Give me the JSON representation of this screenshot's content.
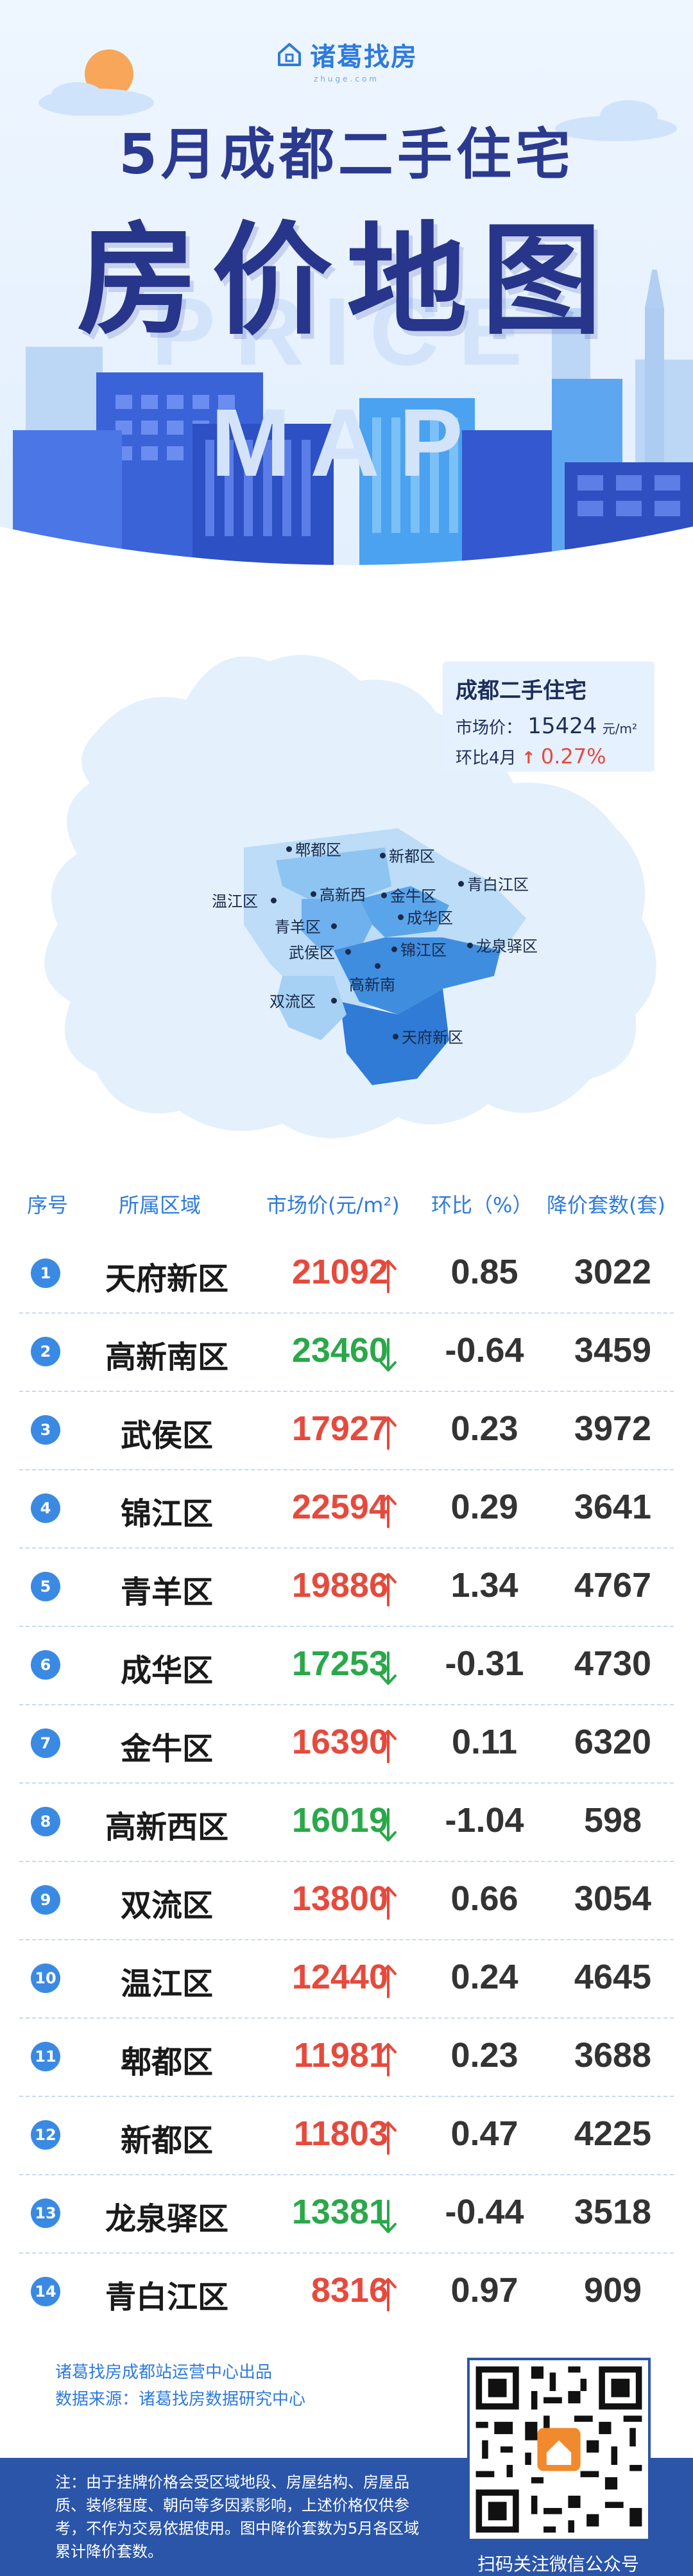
{
  "brand": {
    "name": "诸葛找房",
    "sub": "zhuge.com"
  },
  "title": {
    "line1": "5月成都二手住宅",
    "line2": "房价地图",
    "ghost": "PRICE MAP"
  },
  "summary": {
    "title": "成都二手住宅",
    "price_label": "市场价：",
    "price": "15424",
    "price_unit": "元/m²",
    "mom_label": "环比4月",
    "mom_arrow": "↑",
    "mom_value": "0.27%"
  },
  "map_labels": [
    {
      "name": "郫都区"
    },
    {
      "name": "新都区"
    },
    {
      "name": "青白江区"
    },
    {
      "name": "温江区"
    },
    {
      "name": "高新西"
    },
    {
      "name": "金牛区"
    },
    {
      "name": "成华区"
    },
    {
      "name": "青羊区"
    },
    {
      "name": "武侯区"
    },
    {
      "name": "锦江区"
    },
    {
      "name": "龙泉驿区"
    },
    {
      "name": "双流区"
    },
    {
      "name": "高新南"
    },
    {
      "name": "天府新区"
    }
  ],
  "table": {
    "headers": [
      "序号",
      "所属区域",
      "市场价(元/m²)",
      "环比（%）",
      "降价套数(套)"
    ],
    "rows": [
      {
        "rank": "1",
        "district": "天府新区",
        "price": "21092",
        "trend": "up",
        "change": "0.85",
        "count": "3022"
      },
      {
        "rank": "2",
        "district": "高新南区",
        "price": "23460",
        "trend": "down",
        "change": "-0.64",
        "count": "3459"
      },
      {
        "rank": "3",
        "district": "武侯区",
        "price": "17927",
        "trend": "up",
        "change": "0.23",
        "count": "3972"
      },
      {
        "rank": "4",
        "district": "锦江区",
        "price": "22594",
        "trend": "up",
        "change": "0.29",
        "count": "3641"
      },
      {
        "rank": "5",
        "district": "青羊区",
        "price": "19886",
        "trend": "up",
        "change": "1.34",
        "count": "4767"
      },
      {
        "rank": "6",
        "district": "成华区",
        "price": "17253",
        "trend": "down",
        "change": "-0.31",
        "count": "4730"
      },
      {
        "rank": "7",
        "district": "金牛区",
        "price": "16390",
        "trend": "up",
        "change": "0.11",
        "count": "6320"
      },
      {
        "rank": "8",
        "district": "高新西区",
        "price": "16019",
        "trend": "down",
        "change": "-1.04",
        "count": "598"
      },
      {
        "rank": "9",
        "district": "双流区",
        "price": "13800",
        "trend": "up",
        "change": "0.66",
        "count": "3054"
      },
      {
        "rank": "10",
        "district": "温江区",
        "price": "12440",
        "trend": "up",
        "change": "0.24",
        "count": "4645"
      },
      {
        "rank": "11",
        "district": "郫都区",
        "price": "11981",
        "trend": "up",
        "change": "0.23",
        "count": "3688"
      },
      {
        "rank": "12",
        "district": "新都区",
        "price": "11803",
        "trend": "up",
        "change": "0.47",
        "count": "4225"
      },
      {
        "rank": "13",
        "district": "龙泉驿区",
        "price": "13381",
        "trend": "down",
        "change": "-0.44",
        "count": "3518"
      },
      {
        "rank": "14",
        "district": "青白江区",
        "price": "8316",
        "trend": "up",
        "change": "0.97",
        "count": "909"
      }
    ]
  },
  "footer": {
    "credit1": "诸葛找房成都站运营中心出品",
    "credit2": "数据来源：诸葛找房数据研究中心",
    "note": "注：由于挂牌价格会受区域地段、房屋结构、房屋品质、装修程度、朝向等多因素影响，上述价格仅供参考，不作为交易依据使用。图中降价套数为5月各区域累计降价套数。",
    "qr_caption": "扫码关注微信公众号"
  },
  "colors": {
    "up": "#e64a3c",
    "down": "#2aa84a",
    "accent": "#2f7bdc",
    "navy": "#27368a"
  }
}
